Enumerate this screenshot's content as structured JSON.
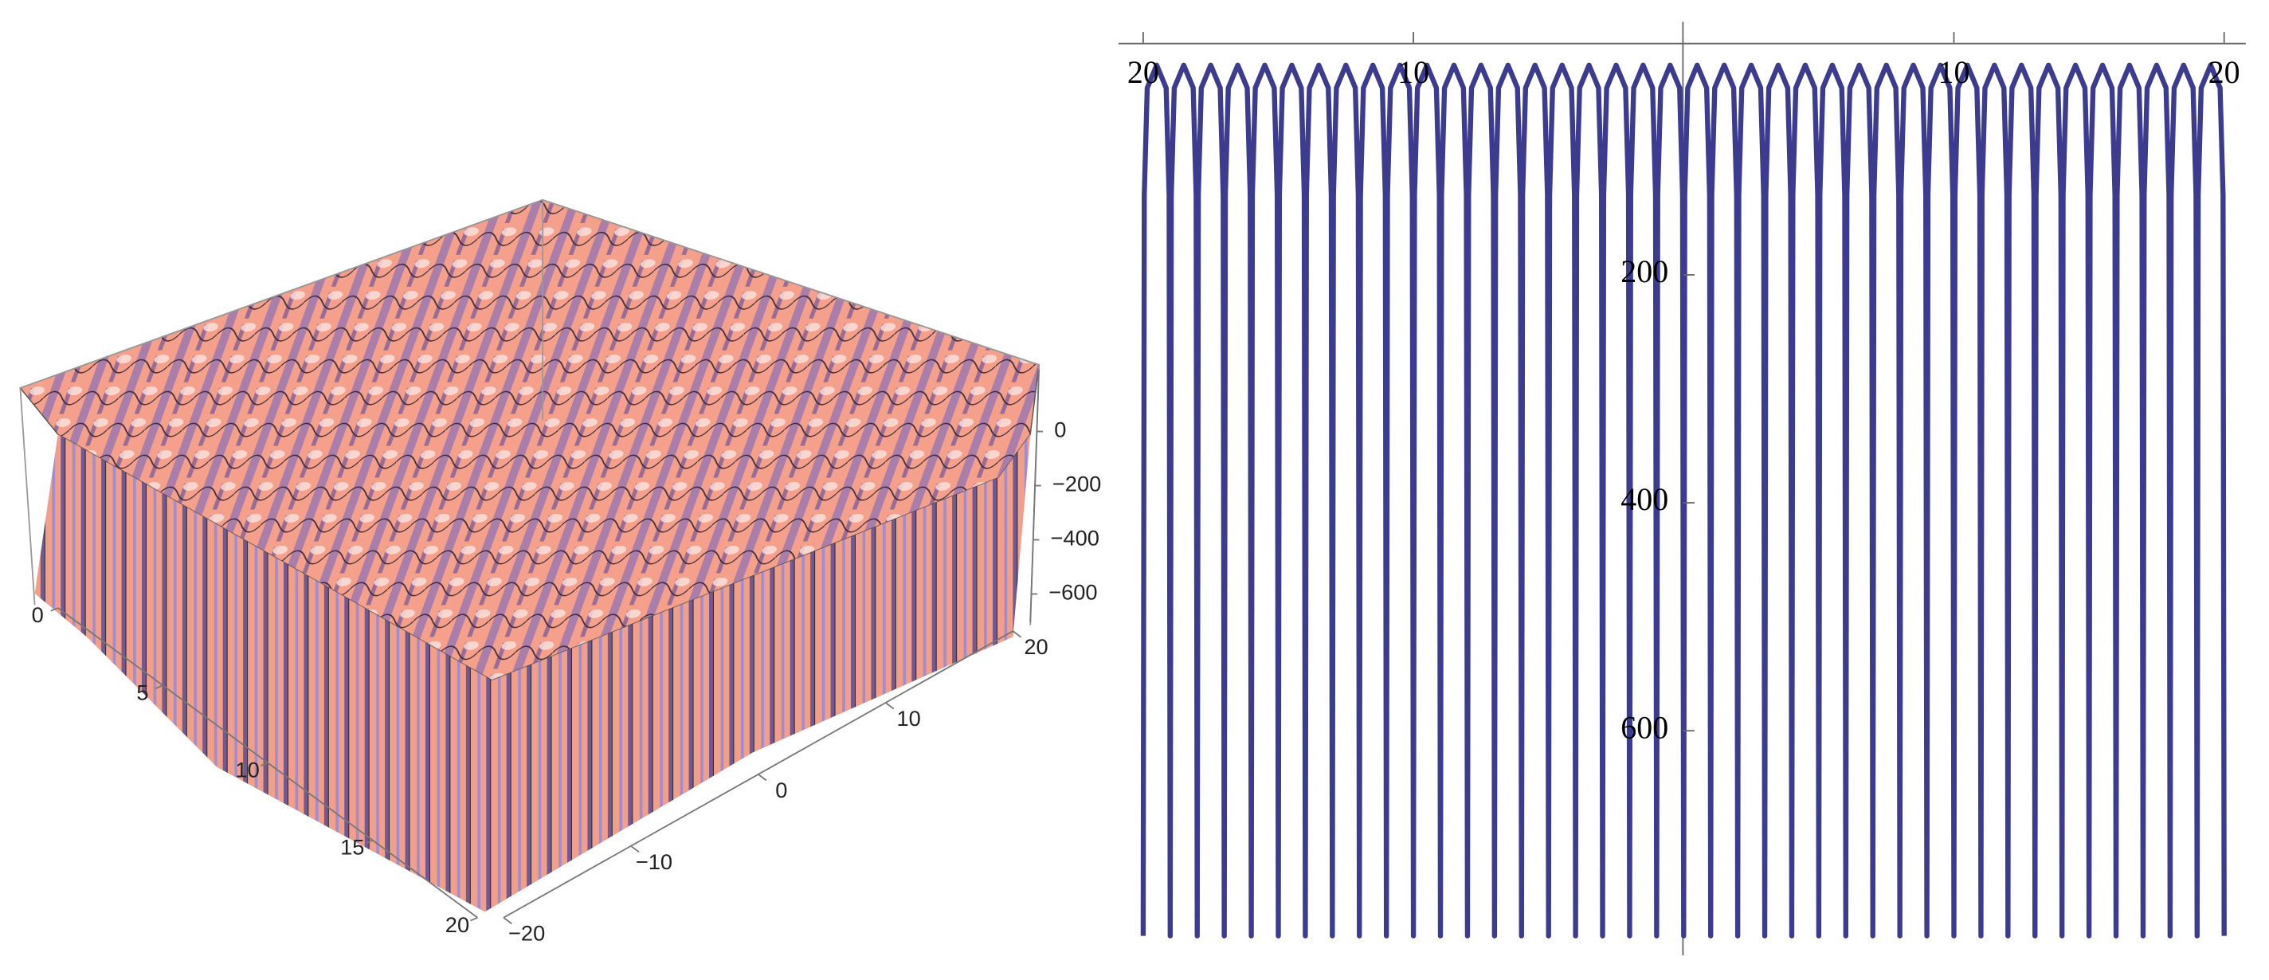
{
  "chart_data": [
    {
      "type": "surface3d",
      "xlim": [
        0,
        20
      ],
      "xticks": [
        0,
        5,
        10,
        15,
        20
      ],
      "ylim": [
        -20,
        20
      ],
      "yticks": [
        {
          "value": -20,
          "label": "−20"
        },
        {
          "value": -10,
          "label": "−10"
        },
        0,
        10,
        20
      ],
      "zlim": [
        -705,
        230
      ],
      "zticks": [
        0,
        {
          "value": -200,
          "label": "−200"
        },
        {
          "value": -400,
          "label": "−400"
        },
        {
          "value": -600,
          "label": "−600"
        }
      ],
      "color": "#f4a08a"
    },
    {
      "type": "line",
      "color": "#3b3b8f",
      "xlim": [
        -20,
        20
      ],
      "ylim": [
        -797,
        22
      ],
      "xticks": [
        {
          "value": -20,
          "label": "20"
        },
        {
          "value": -10,
          "label": "10"
        },
        {
          "value": 10,
          "label": "10"
        },
        {
          "value": 20,
          "label": "20"
        }
      ],
      "yticks": [
        {
          "value": -200,
          "label": "200"
        },
        {
          "value": -400,
          "label": "400"
        },
        {
          "value": -600,
          "label": "600"
        }
      ],
      "x": [
        -20,
        -19.96,
        -19.85,
        -19.5,
        -19.15,
        -19.04,
        -19,
        -18.96,
        -18.85,
        -18.5,
        -18.15,
        -18.04,
        -18,
        -17.96,
        -17.85,
        -17.5,
        -17.15,
        -17.04,
        -17,
        -16.96,
        -16.85,
        -16.5,
        -16.15,
        -16.04,
        -16,
        -15.96,
        -15.85,
        -15.5,
        -15.15,
        -15.04,
        -15,
        -14.96,
        -14.85,
        -14.5,
        -14.15,
        -14.04,
        -14,
        -13.96,
        -13.85,
        -13.5,
        -13.15,
        -13.04,
        -13,
        -12.96,
        -12.85,
        -12.5,
        -12.15,
        -12.04,
        -12,
        -11.96,
        -11.85,
        -11.5,
        -11.15,
        -11.04,
        -11,
        -10.96,
        -10.85,
        -10.5,
        -10.15,
        -10.04,
        -10,
        -9.96,
        -9.85,
        -9.5,
        -9.15,
        -9.04,
        -9,
        -8.96,
        -8.85,
        -8.5,
        -8.15,
        -8.04,
        -8,
        -7.96,
        -7.85,
        -7.5,
        -7.15,
        -7.04,
        -7,
        -6.96,
        -6.85,
        -6.5,
        -6.15,
        -6.04,
        -6,
        -5.96,
        -5.85,
        -5.5,
        -5.15,
        -5.04,
        -5,
        -4.96,
        -4.85,
        -4.5,
        -4.15,
        -4.04,
        -4,
        -3.96,
        -3.85,
        -3.5,
        -3.15,
        -3.04,
        -3,
        -2.96,
        -2.85,
        -2.5,
        -2.15,
        -2.04,
        -2,
        -1.96,
        -1.85,
        -1.5,
        -1.15,
        -1.04,
        -1,
        -0.96,
        -0.85,
        -0.5,
        -0.15,
        -0.04,
        0,
        0.04,
        0.15,
        0.5,
        0.85,
        0.96,
        1,
        1.04,
        1.15,
        1.5,
        1.85,
        1.96,
        2,
        2.04,
        2.15,
        2.5,
        2.85,
        2.96,
        3,
        3.04,
        3.15,
        3.5,
        3.85,
        3.96,
        4,
        4.04,
        4.15,
        4.5,
        4.85,
        4.96,
        5,
        5.04,
        5.15,
        5.5,
        5.85,
        5.96,
        6,
        6.04,
        6.15,
        6.5,
        6.85,
        6.96,
        7,
        7.04,
        7.15,
        7.5,
        7.85,
        7.96,
        8,
        8.04,
        8.15,
        8.5,
        8.85,
        8.96,
        9,
        9.04,
        9.15,
        9.5,
        9.85,
        9.96,
        10,
        10.04,
        10.15,
        10.5,
        10.85,
        10.96,
        11,
        11.04,
        11.15,
        11.5,
        11.85,
        11.96,
        12,
        12.04,
        12.15,
        12.5,
        12.85,
        12.96,
        13,
        13.04,
        13.15,
        13.5,
        13.85,
        13.96,
        14,
        14.04,
        14.15,
        14.5,
        14.85,
        14.96,
        15,
        15.04,
        15.15,
        15.5,
        15.85,
        15.96,
        16,
        16.04,
        16.15,
        16.5,
        16.85,
        16.96,
        17,
        17.04,
        17.15,
        17.5,
        17.85,
        17.96,
        18,
        18.04,
        18.15,
        18.5,
        18.85,
        18.96,
        19,
        19.04,
        19.15,
        19.5,
        19.85,
        19.96,
        20
      ],
      "values": [
        -780,
        -130,
        -36,
        -16,
        -36,
        -130,
        -780,
        -130,
        -36,
        -16,
        -36,
        -130,
        -780,
        -130,
        -36,
        -16,
        -36,
        -130,
        -780,
        -130,
        -36,
        -16,
        -36,
        -130,
        -780,
        -130,
        -36,
        -16,
        -36,
        -130,
        -780,
        -130,
        -36,
        -16,
        -36,
        -130,
        -780,
        -130,
        -36,
        -16,
        -36,
        -130,
        -780,
        -130,
        -36,
        -16,
        -36,
        -130,
        -780,
        -130,
        -36,
        -16,
        -36,
        -130,
        -780,
        -130,
        -36,
        -16,
        -36,
        -130,
        -780,
        -130,
        -36,
        -16,
        -36,
        -130,
        -780,
        -130,
        -36,
        -16,
        -36,
        -130,
        -780,
        -130,
        -36,
        -16,
        -36,
        -130,
        -780,
        -130,
        -36,
        -16,
        -36,
        -130,
        -780,
        -130,
        -36,
        -16,
        -36,
        -130,
        -780,
        -130,
        -36,
        -16,
        -36,
        -130,
        -780,
        -130,
        -36,
        -16,
        -36,
        -130,
        -780,
        -130,
        -36,
        -16,
        -36,
        -130,
        -780,
        -130,
        -36,
        -16,
        -36,
        -130,
        -780,
        -130,
        -36,
        -16,
        -36,
        -130,
        -780,
        -130,
        -36,
        -16,
        -36,
        -130,
        -780,
        -130,
        -36,
        -16,
        -36,
        -130,
        -780,
        -130,
        -36,
        -16,
        -36,
        -130,
        -780,
        -130,
        -36,
        -16,
        -36,
        -130,
        -780,
        -130,
        -36,
        -16,
        -36,
        -130,
        -780,
        -130,
        -36,
        -16,
        -36,
        -130,
        -780,
        -130,
        -36,
        -16,
        -36,
        -130,
        -780,
        -130,
        -36,
        -16,
        -36,
        -130,
        -780,
        -130,
        -36,
        -16,
        -36,
        -130,
        -780,
        -130,
        -36,
        -16,
        -36,
        -130,
        -780,
        -130,
        -36,
        -16,
        -36,
        -130,
        -780,
        -130,
        -36,
        -16,
        -36,
        -130,
        -780,
        -130,
        -36,
        -16,
        -36,
        -130,
        -780,
        -130,
        -36,
        -16,
        -36,
        -130,
        -780,
        -130,
        -36,
        -16,
        -36,
        -130,
        -780,
        -130,
        -36,
        -16,
        -36,
        -130,
        -780,
        -130,
        -36,
        -16,
        -36,
        -130,
        -780,
        -130,
        -36,
        -16,
        -36,
        -130,
        -780,
        -130,
        -36,
        -16,
        -36,
        -130,
        -780,
        -130,
        -36,
        -16,
        -36,
        -130,
        -780
      ]
    }
  ]
}
